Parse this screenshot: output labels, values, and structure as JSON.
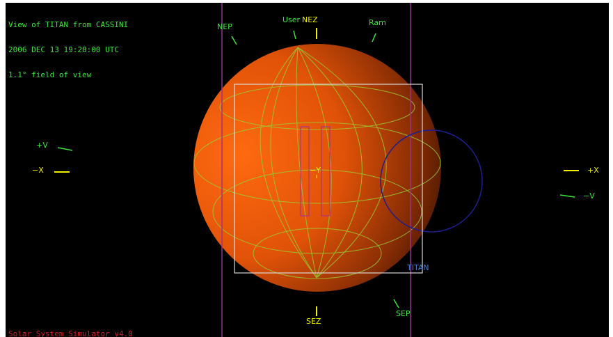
{
  "header": {
    "line1": "View of TITAN from CASSINI",
    "line2": "2006 DEC 13 19:28:00 UTC",
    "line3": "1.1° field of view"
  },
  "footer": {
    "app_name": "Solar System Simulator v4.0"
  },
  "labels": {
    "nep": "NEP",
    "user": "User",
    "nez": "NEZ",
    "ram": "Ram",
    "plus_v": "+V",
    "minus_x": "−X",
    "plus_x": "+X",
    "minus_v": "−V",
    "minus_y": "−Y",
    "titan": "TITAN",
    "sez": "SEZ",
    "sep": "SEP"
  },
  "colors": {
    "background": "#000000",
    "planet_light": "#ff6a10",
    "planet_dark": "#2a0c00",
    "grid": "#9acd32",
    "marker_green": "#39e639",
    "marker_yellow": "#f0f000",
    "fov_box": "#d8d8d8",
    "purple_line": "#9b2f9b",
    "blue_circle": "#1e1e90",
    "titan_label": "#3a7ae0",
    "footer_text": "#d0202a"
  }
}
